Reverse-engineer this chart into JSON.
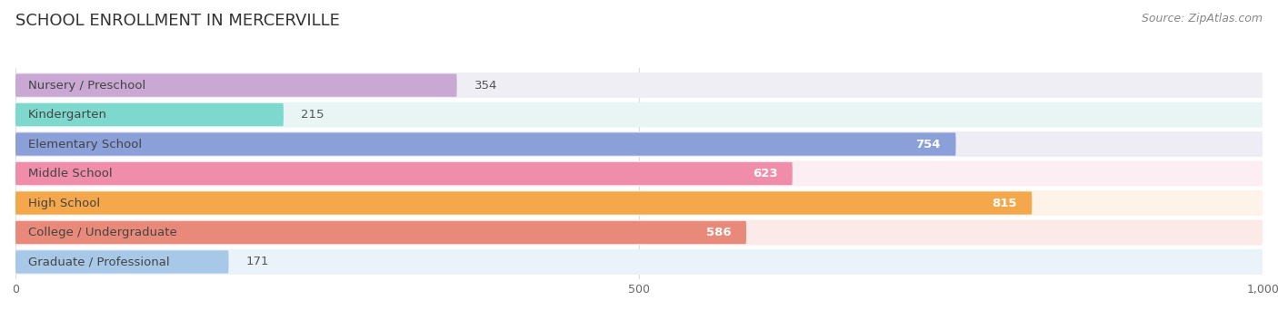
{
  "title": "SCHOOL ENROLLMENT IN MERCERVILLE",
  "source": "Source: ZipAtlas.com",
  "categories": [
    "Nursery / Preschool",
    "Kindergarten",
    "Elementary School",
    "Middle School",
    "High School",
    "College / Undergraduate",
    "Graduate / Professional"
  ],
  "values": [
    354,
    215,
    754,
    623,
    815,
    586,
    171
  ],
  "bar_colors": [
    "#C9A8D4",
    "#7DD9CE",
    "#8B9FD8",
    "#F08DAB",
    "#F5A84B",
    "#E8897A",
    "#A8C8E8"
  ],
  "bg_row_colors": [
    "#F0EEF5",
    "#E8F5F4",
    "#EEEDF6",
    "#FCEEF3",
    "#FEF3E8",
    "#FBEAE8",
    "#EBF3FA"
  ],
  "xlim": [
    0,
    1000
  ],
  "xticks": [
    0,
    500,
    1000
  ],
  "xtick_labels": [
    "0",
    "500",
    "1,000"
  ],
  "title_fontsize": 13,
  "source_fontsize": 9,
  "label_fontsize": 9.5,
  "value_fontsize": 9.5,
  "background_color": "#FFFFFF",
  "grid_color": "#DDDDDD",
  "value_inside_threshold": 400
}
